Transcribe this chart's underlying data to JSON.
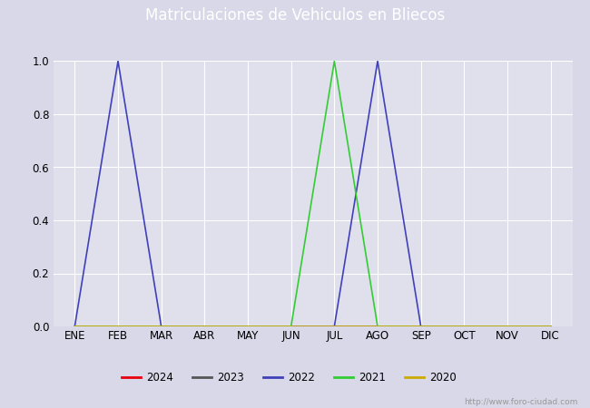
{
  "title": "Matriculaciones de Vehiculos en Bliecos",
  "months": [
    "ENE",
    "FEB",
    "MAR",
    "ABR",
    "MAY",
    "JUN",
    "JUL",
    "AGO",
    "SEP",
    "OCT",
    "NOV",
    "DIC"
  ],
  "month_indices": [
    0,
    1,
    2,
    3,
    4,
    5,
    6,
    7,
    8,
    9,
    10,
    11
  ],
  "series": {
    "2024": {
      "color": "#e8000e",
      "values": [
        0,
        0,
        0,
        0,
        0,
        0,
        0,
        0,
        0,
        0,
        0,
        0
      ]
    },
    "2023": {
      "color": "#555555",
      "values": [
        0,
        0,
        0,
        0,
        0,
        0,
        0,
        0,
        0,
        0,
        0,
        0
      ]
    },
    "2022": {
      "color": "#4040bb",
      "values": [
        0,
        1.0,
        0,
        0,
        0,
        0,
        0,
        1.0,
        0,
        0,
        0,
        0
      ]
    },
    "2021": {
      "color": "#33cc33",
      "values": [
        0,
        0,
        0,
        0,
        0,
        0,
        1.0,
        0,
        0,
        0,
        0,
        0
      ]
    },
    "2020": {
      "color": "#ccaa00",
      "values": [
        0,
        0,
        0,
        0,
        0,
        0,
        0,
        0,
        0,
        0,
        0,
        0
      ]
    }
  },
  "ylim": [
    0.0,
    1.0
  ],
  "yticks": [
    0.0,
    0.2,
    0.4,
    0.6,
    0.8,
    1.0
  ],
  "outer_bg_color": "#d8d8e8",
  "plot_bg_color": "#e0e0ec",
  "title_bg_color": "#5577bb",
  "title_color": "#ffffff",
  "grid_color": "#ffffff",
  "url_text": "http://www.foro-ciudad.com",
  "legend_years": [
    "2024",
    "2023",
    "2022",
    "2021",
    "2020"
  ],
  "legend_colors": [
    "#e8000e",
    "#555555",
    "#4040bb",
    "#33cc33",
    "#ccaa00"
  ]
}
